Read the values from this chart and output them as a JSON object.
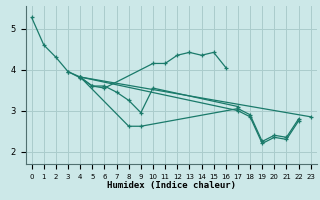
{
  "xlabel": "Humidex (Indice chaleur)",
  "bg_color": "#cce8e8",
  "grid_color": "#aacccc",
  "line_color": "#1a7a6a",
  "series": [
    {
      "x": [
        0,
        1,
        2,
        3,
        4,
        5,
        6,
        10,
        11,
        12,
        13,
        14,
        15,
        16
      ],
      "y": [
        5.27,
        4.6,
        4.3,
        3.95,
        3.8,
        3.6,
        3.55,
        4.15,
        4.15,
        4.35,
        4.42,
        4.35,
        4.42,
        4.05
      ]
    },
    {
      "x": [
        3,
        4,
        5,
        6,
        7,
        8,
        9,
        10,
        17
      ],
      "y": [
        3.95,
        3.82,
        3.6,
        3.6,
        3.45,
        3.25,
        2.95,
        3.55,
        3.1
      ]
    },
    {
      "x": [
        4,
        8,
        9,
        17,
        18,
        19,
        20,
        21,
        22
      ],
      "y": [
        3.82,
        2.62,
        2.62,
        3.05,
        2.9,
        2.25,
        2.4,
        2.35,
        2.8
      ]
    },
    {
      "x": [
        4,
        17,
        18,
        19,
        20,
        21,
        22
      ],
      "y": [
        3.82,
        3.0,
        2.85,
        2.2,
        2.35,
        2.3,
        2.75
      ]
    },
    {
      "x": [
        4,
        23
      ],
      "y": [
        3.82,
        2.85
      ]
    }
  ],
  "ylim": [
    1.7,
    5.55
  ],
  "xlim": [
    -0.5,
    23.5
  ],
  "yticks": [
    2,
    3,
    4,
    5
  ],
  "xticks": [
    0,
    1,
    2,
    3,
    4,
    5,
    6,
    7,
    8,
    9,
    10,
    11,
    12,
    13,
    14,
    15,
    16,
    17,
    18,
    19,
    20,
    21,
    22,
    23
  ]
}
